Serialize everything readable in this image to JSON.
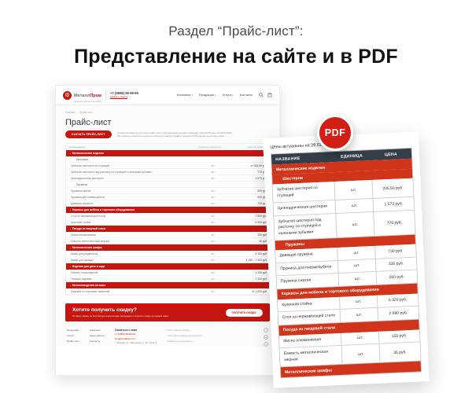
{
  "page": {
    "title_line1": "Раздел  “Прайс-лист”:",
    "title_line2": "Представление на сайте и в PDF"
  },
  "colors": {
    "brand_red": "#c4160f",
    "pdf_section_red": "#d0351b",
    "pdf_header_bg": "#333e48",
    "badge_red": "#d21f16"
  },
  "icons": {
    "logo_gear": "⚙",
    "nav_caret": "▾",
    "breadcrumb_sep": "–",
    "section_caret": "›",
    "social_1": "f",
    "social_2": "vk",
    "social_3": "t"
  },
  "site": {
    "header": {
      "brand_part1": "Металл",
      "brand_part2": "Пром",
      "brand_sub": "металлоизделия под заказ",
      "phone": "+7 (9999) 99-99-99",
      "phone_link": "заказать звонок",
      "nav": [
        "Компания",
        "Продукция",
        "Услуги",
        "Контакты"
      ]
    },
    "breadcrumb": [
      "Главная",
      "Прайс-лист"
    ],
    "page_title": "Прайс-лист",
    "download_button": "СКАЧАТЬ ПРАЙС-ЛИСТ",
    "intro_line1": "В данном разделе доступен прайс-лист с актуальными ценами компании «МеталлПром» на 29.01.2024.",
    "intro_line2": "Вы можете посмотреть цены на сайте или скачать прайс в формате PDF, нажав на кнопку слева.",
    "table": {
      "headers": [
        "Наименование",
        "Единица измерения",
        "Цена за единицу"
      ],
      "rows": [
        {
          "type": "section",
          "name": "Металлические изделия"
        },
        {
          "type": "subsection",
          "name": "Шестерни"
        },
        {
          "type": "item",
          "name": "Зубчатая шестерня со ступицей",
          "unit": "шт.",
          "price": "от 205,50 руб."
        },
        {
          "type": "item",
          "name": "Зубчатая шестерня под расточку со ступицей и калеными зубьями",
          "unit": "шт.",
          "price": "770 руб."
        },
        {
          "type": "item",
          "name": "Цилиндрическая шестерня",
          "unit": "шт.",
          "price": "1 573 руб."
        },
        {
          "type": "subsection",
          "name": "Пружины"
        },
        {
          "type": "item",
          "name": "Пружина сжатия",
          "unit": "шт.",
          "price": "260 руб."
        },
        {
          "type": "item",
          "name": "Пружина для пневмозубила",
          "unit": "шт.",
          "price": "330 руб."
        },
        {
          "type": "item",
          "name": "Давящая пружина",
          "unit": "шт.",
          "price": "730 руб."
        },
        {
          "type": "section",
          "name": "Каркасы для мебели и торгового оборудования"
        },
        {
          "type": "item",
          "name": "Стол из нержавеющей стали",
          "unit": "шт.",
          "price": "2 890 руб."
        },
        {
          "type": "item",
          "name": "Кухонная стойка",
          "unit": "шт.",
          "price": "6 320 руб."
        },
        {
          "type": "section",
          "name": "Посуда из пищевой стали"
        },
        {
          "type": "item",
          "name": "Миска алюминиевая",
          "unit": "шт.",
          "price": "150 руб."
        },
        {
          "type": "item",
          "name": "Емкость металлическая мерная",
          "unit": "шт.",
          "price": "36 руб."
        },
        {
          "type": "section",
          "name": "Металлические шкафы"
        },
        {
          "type": "item",
          "name": "Шкаф для раздевалок",
          "unit": "шт.",
          "price": "5 100 руб."
        },
        {
          "type": "item",
          "name": "Шкаф для одежды",
          "unit": "шт.",
          "price": "6 150 – 7 400 руб."
        },
        {
          "type": "section",
          "name": "Изделия для дачи и сада"
        },
        {
          "type": "item",
          "name": "Мангал стационарный",
          "unit": "шт.",
          "price": "4 150 руб."
        },
        {
          "type": "item",
          "name": "Тележка садовая",
          "unit": "шт.",
          "price": "2 300 руб."
        },
        {
          "type": "section",
          "name": "Металлоизделия на заказ"
        },
        {
          "type": "item",
          "name": "Изделия по чертежам заказчика",
          "unit": "шт.",
          "price": "от 1 000 руб."
        }
      ]
    },
    "cta": {
      "title": "Хотите получить скидку?",
      "subtitle": "Оставьте заявку на бесплатную консультацию менеджера и получите скидку на первый заказ",
      "button": "ПОЛУЧИТЬ СКИДКУ"
    },
    "footer": {
      "col1": [
        "Продукция",
        "Услуги",
        "Прайс-лист"
      ],
      "col2": [
        "Компания",
        "Наши работы",
        "Контакты"
      ],
      "contacts_title": "Связаться с нами",
      "phone": "+7 (9999) 99-99-99",
      "email": "info@metallprom.ru",
      "address": "г. Москва, ул. Заводская, д. 10, офис 5",
      "legal": [
        "ООО «МеталлПром»",
        "Политика конфиденциальности",
        "Реквизиты и документы"
      ]
    }
  },
  "pdf": {
    "badge": "PDF",
    "date_note": "Цены актуальны на 29.01.2024",
    "table": {
      "headers": [
        "НАЗВАНИЕ",
        "ЕДИНИЦА",
        "ЦЕНА"
      ],
      "rows": [
        {
          "type": "section",
          "name": "Металлические изделия"
        },
        {
          "type": "subsection",
          "name": "Шестерни"
        },
        {
          "type": "item",
          "name": "Зубчатая шестерня со ступицей",
          "unit": "шт.",
          "price": "205,50 руб."
        },
        {
          "type": "item",
          "name": "Цилиндрическая шестерня",
          "unit": "шт.",
          "price": "1 573 руб."
        },
        {
          "type": "item",
          "name": "Зубчатая шестерня под расточку со ступицей и калеными зубьями",
          "unit": "шт.",
          "price": "770 руб."
        },
        {
          "type": "subsection",
          "name": "Пружины"
        },
        {
          "type": "item",
          "name": "Давящая пружина",
          "unit": "шт.",
          "price": "730 руб."
        },
        {
          "type": "item",
          "name": "Пружина для пневмозубила",
          "unit": "шт.",
          "price": "330 руб."
        },
        {
          "type": "item",
          "name": "Пружина сжатия",
          "unit": "шт.",
          "price": "260 руб."
        },
        {
          "type": "section",
          "name": "Каркасы для мебели и торгового оборудования"
        },
        {
          "type": "item",
          "name": "Кухонная стойка",
          "unit": "шт.",
          "price": "6 320 руб."
        },
        {
          "type": "item",
          "name": "Стол из нержавеющей стали",
          "unit": "шт.",
          "price": "2 890 руб."
        },
        {
          "type": "section",
          "name": "Посуда из пищевой стали"
        },
        {
          "type": "item",
          "name": "Миска алюминиевая",
          "unit": "шт.",
          "price": "150 руб."
        },
        {
          "type": "item",
          "name": "Емкость металлическая мерная",
          "unit": "шт.",
          "price": "36 руб."
        },
        {
          "type": "section",
          "name": "Металлические шкафы"
        }
      ]
    }
  }
}
